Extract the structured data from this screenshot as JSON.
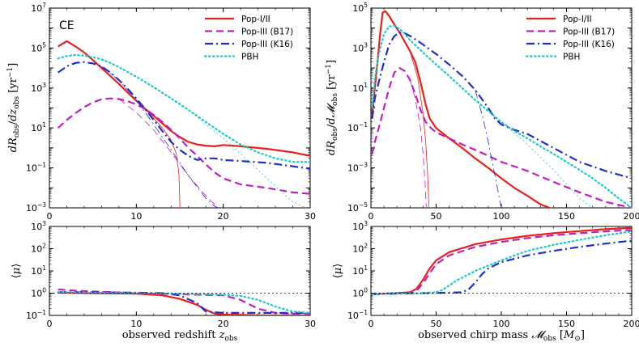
{
  "figure_colors": {
    "pop12": "#e8201c",
    "b17": "#c21fc0",
    "k16": "#1f2fcf",
    "pbh": "#1fc8c8",
    "ref": "#000000"
  },
  "legend_entries": [
    "Pop-I/II",
    "Pop-III (B17)",
    "Pop-III (K16)",
    "PBH"
  ],
  "chart_data": [
    {
      "id": "tl",
      "type": "line",
      "panel_label": "CE",
      "xlabel": "",
      "ylabel": "dR_obs / dz_obs [yr^-1]",
      "xscale": "linear",
      "yscale": "log",
      "xlim": [
        0,
        30
      ],
      "ylim": [
        0.001,
        10000000
      ],
      "xticks": [
        0,
        10,
        20,
        30
      ],
      "xticklabels": [
        "0",
        "10",
        "20",
        "30"
      ],
      "yticks": [
        0.001,
        0.1,
        10,
        1000,
        100000,
        10000000
      ],
      "yticklabels": [
        "10^-3",
        "10^-1",
        "10^1",
        "10^3",
        "10^5",
        "10^7"
      ],
      "legend": "top-right",
      "series": [
        {
          "name": "Pop-I/II",
          "key": "pop12",
          "dash": "solid",
          "width": 2.2,
          "x": [
            1,
            2,
            3,
            4,
            5,
            6,
            7,
            8,
            9,
            10,
            11,
            12,
            13,
            14,
            15,
            16,
            17,
            18,
            19,
            20,
            22,
            25,
            28,
            30
          ],
          "y": [
            120000,
            220000,
            120000,
            60000,
            25000,
            10000,
            4000,
            1600,
            600,
            230,
            90,
            40,
            17,
            7,
            3.5,
            2,
            1.5,
            1.3,
            1.2,
            1.4,
            1.2,
            0.9,
            0.6,
            0.4
          ]
        },
        {
          "name": "Pop-I/II thin",
          "key": "pop12",
          "dash": "solid",
          "width": 0.8,
          "x": [
            7,
            9,
            11,
            13,
            14,
            14.6,
            14.9,
            15,
            15.02
          ],
          "y": [
            4000,
            600,
            90,
            10,
            2.5,
            0.5,
            0.05,
            0.002,
            0.001
          ]
        },
        {
          "name": "Pop-III (B17)",
          "key": "b17",
          "dash": "dash",
          "width": 2.2,
          "x": [
            1,
            2,
            3,
            4,
            5,
            6,
            7,
            8,
            9,
            10,
            11,
            12,
            13,
            14,
            15,
            16,
            17,
            18,
            19,
            20,
            22,
            25,
            28,
            30
          ],
          "y": [
            10,
            25,
            55,
            110,
            190,
            270,
            300,
            280,
            220,
            150,
            90,
            45,
            20,
            8,
            3,
            1,
            0.4,
            0.15,
            0.06,
            0.03,
            0.015,
            0.01,
            0.006,
            0.005
          ]
        },
        {
          "name": "Pop-III (B17) thin",
          "key": "b17",
          "dash": "dash",
          "width": 0.8,
          "x": [
            8,
            10,
            12,
            14,
            16,
            18,
            19,
            19.5
          ],
          "y": [
            280,
            60,
            8,
            0.6,
            0.04,
            0.004,
            0.0015,
            0.001
          ]
        },
        {
          "name": "Pop-III (K16)",
          "key": "k16",
          "dash": "dashdot",
          "width": 2.2,
          "x": [
            1,
            2,
            3,
            4,
            5,
            6,
            7,
            8,
            9,
            10,
            11,
            12,
            13,
            14,
            15,
            16,
            17,
            18,
            19,
            20,
            22,
            25,
            28,
            30
          ],
          "y": [
            6000,
            12000,
            18000,
            20000,
            17000,
            12000,
            6000,
            2500,
            900,
            300,
            90,
            25,
            7,
            2,
            0.8,
            0.4,
            0.25,
            0.3,
            0.3,
            0.25,
            0.22,
            0.18,
            0.12,
            0.09
          ]
        },
        {
          "name": "Pop-III (K16) thin",
          "key": "k16",
          "dash": "dashdot",
          "width": 0.8,
          "x": [
            6,
            8,
            10,
            12,
            14,
            16,
            18,
            19,
            19.4
          ],
          "y": [
            12000,
            2500,
            250,
            15,
            0.8,
            0.04,
            0.003,
            0.0012,
            0.001
          ]
        },
        {
          "name": "PBH",
          "key": "pbh",
          "dash": "dot",
          "width": 2.2,
          "x": [
            1,
            2,
            3,
            4,
            5,
            6,
            7,
            8,
            10,
            12,
            14,
            16,
            18,
            20,
            22,
            24,
            26,
            28,
            30
          ],
          "y": [
            30000,
            40000,
            45000,
            42000,
            35000,
            27000,
            18000,
            11000,
            3700,
            1100,
            300,
            80,
            20,
            5,
            1.5,
            0.6,
            0.3,
            0.2,
            0.2
          ]
        },
        {
          "name": "PBH thin",
          "key": "pbh",
          "dash": "dot",
          "width": 0.8,
          "x": [
            16,
            18,
            20,
            22,
            24,
            26,
            28,
            29.5
          ],
          "y": [
            80,
            15,
            3,
            0.5,
            0.08,
            0.012,
            0.002,
            0.001
          ]
        }
      ]
    },
    {
      "id": "tr",
      "type": "line",
      "xlabel": "",
      "ylabel": "dR_obs / dM_obs [yr^-1]",
      "xscale": "linear",
      "yscale": "log",
      "xlim": [
        0,
        200
      ],
      "ylim": [
        1e-05,
        100000
      ],
      "xticks": [
        0,
        50,
        100,
        150,
        200
      ],
      "xticklabels": [
        "0",
        "50",
        "100",
        "150",
        "200"
      ],
      "yticks": [
        1e-05,
        0.001,
        0.1,
        10,
        1000,
        100000
      ],
      "yticklabels": [
        "10^-5",
        "10^-3",
        "10^-1",
        "10^1",
        "10^3",
        "10^5"
      ],
      "legend": "top-right",
      "series": [
        {
          "name": "Pop-I/II",
          "key": "pop12",
          "dash": "solid",
          "width": 2.2,
          "x": [
            1,
            3,
            5,
            7,
            9,
            11,
            14,
            18,
            22,
            26,
            30,
            34,
            38,
            42,
            45,
            50,
            60,
            70,
            80,
            90,
            100,
            110,
            120,
            130,
            137
          ],
          "y": [
            0.5,
            10,
            200,
            5000,
            60000,
            70000,
            40000,
            15000,
            6000,
            2000,
            700,
            200,
            20,
            1.5,
            0.3,
            0.1,
            0.03,
            0.01,
            0.003,
            0.001,
            0.0003,
            0.0001,
            4e-05,
            1.5e-05,
            1e-05
          ]
        },
        {
          "name": "Pop-I/II thin",
          "key": "pop12",
          "dash": "solid",
          "width": 0.8,
          "x": [
            22,
            30,
            36,
            40,
            42,
            43.5,
            44.5
          ],
          "y": [
            6000,
            700,
            30,
            0.5,
            0.02,
            0.0005,
            1e-05
          ]
        },
        {
          "name": "Pop-III (B17)",
          "key": "b17",
          "dash": "dash",
          "width": 2.2,
          "x": [
            1,
            3,
            6,
            10,
            14,
            18,
            22,
            26,
            30,
            34,
            38,
            42,
            46,
            50,
            60,
            70,
            80,
            90,
            100,
            120,
            140,
            160,
            180,
            200
          ],
          "y": [
            0.005,
            0.02,
            0.1,
            1,
            10,
            60,
            100,
            70,
            25,
            5,
            0.8,
            0.2,
            0.1,
            0.06,
            0.03,
            0.015,
            0.008,
            0.004,
            0.002,
            0.0007,
            0.0002,
            6e-05,
            2e-05,
            1e-05
          ]
        },
        {
          "name": "Pop-III (B17) thin",
          "key": "b17",
          "dash": "dash",
          "width": 0.8,
          "x": [
            30,
            34,
            38,
            40,
            41.5,
            42.5
          ],
          "y": [
            25,
            3,
            0.1,
            0.005,
            0.0002,
            1e-05
          ]
        },
        {
          "name": "Pop-III (K16)",
          "key": "k16",
          "dash": "dashdot",
          "width": 2.2,
          "x": [
            1,
            3,
            6,
            10,
            14,
            18,
            22,
            26,
            30,
            35,
            40,
            50,
            60,
            70,
            80,
            90,
            95,
            100,
            110,
            120,
            140,
            160,
            180,
            200
          ],
          "y": [
            0.3,
            3,
            20,
            200,
            1500,
            4000,
            6000,
            5500,
            4000,
            2500,
            1500,
            500,
            150,
            40,
            8,
            1,
            0.3,
            0.15,
            0.08,
            0.05,
            0.01,
            0.002,
            0.0007,
            0.0003
          ]
        },
        {
          "name": "Pop-III (K16) thin",
          "key": "k16",
          "dash": "dashdot",
          "width": 0.8,
          "x": [
            80,
            86,
            90,
            94,
            97,
            99,
            100
          ],
          "y": [
            8,
            0.3,
            0.02,
            0.001,
            0.0001,
            2e-05,
            1e-05
          ]
        },
        {
          "name": "PBH",
          "key": "pbh",
          "dash": "dot",
          "width": 2.2,
          "x": [
            1,
            3,
            6,
            10,
            14,
            18,
            22,
            26,
            30,
            40,
            50,
            60,
            70,
            80,
            90,
            100,
            110,
            120,
            130,
            140,
            150,
            160,
            170,
            180,
            190,
            200
          ],
          "y": [
            1,
            30,
            500,
            5000,
            12000,
            13000,
            9000,
            5000,
            2500,
            600,
            150,
            40,
            10,
            2.5,
            0.7,
            0.2,
            0.07,
            0.03,
            0.012,
            0.005,
            0.002,
            0.0008,
            0.0003,
            0.0001,
            3e-05,
            1e-05
          ]
        },
        {
          "name": "PBH thin",
          "key": "pbh",
          "dash": "dot",
          "width": 0.8,
          "x": [
            100,
            120,
            140,
            150,
            160,
            170
          ],
          "y": [
            0.2,
            0.015,
            0.0008,
            0.00015,
            3e-05,
            1e-05
          ]
        }
      ]
    },
    {
      "id": "bl",
      "type": "line",
      "xlabel": "observed redshift z_obs",
      "ylabel": "⟨μ⟩",
      "xscale": "linear",
      "yscale": "log",
      "xlim": [
        0,
        30
      ],
      "ylim": [
        0.1,
        1000
      ],
      "xticks": [
        0,
        10,
        20,
        30
      ],
      "xticklabels": [
        "0",
        "10",
        "20",
        "30"
      ],
      "yticks": [
        0.1,
        1,
        10,
        100,
        1000
      ],
      "yticklabels": [
        "10^-1",
        "10^0",
        "10^1",
        "10^2",
        "10^3"
      ],
      "series": [
        {
          "name": "Pop-I/II",
          "key": "pop12",
          "dash": "solid",
          "width": 2.2,
          "x": [
            1,
            5,
            10,
            13,
            15,
            17,
            18,
            19,
            20,
            25,
            30
          ],
          "y": [
            1.05,
            1,
            0.95,
            0.8,
            0.55,
            0.3,
            0.18,
            0.12,
            0.11,
            0.1,
            0.1
          ]
        },
        {
          "name": "Pop-III (B17)",
          "key": "b17",
          "dash": "dash",
          "width": 2.2,
          "x": [
            1,
            3,
            6,
            10,
            15,
            20,
            22,
            24,
            26,
            28,
            30
          ],
          "y": [
            1.5,
            1.3,
            1.15,
            1,
            0.9,
            0.8,
            0.5,
            0.2,
            0.13,
            0.12,
            0.12
          ]
        },
        {
          "name": "Pop-III (K16)",
          "key": "k16",
          "dash": "dashdot",
          "width": 2.2,
          "x": [
            1,
            5,
            10,
            13,
            15,
            17,
            18,
            20,
            25,
            30
          ],
          "y": [
            1.1,
            1.1,
            1.05,
            1,
            0.8,
            0.35,
            0.15,
            0.13,
            0.13,
            0.13
          ]
        },
        {
          "name": "PBH",
          "key": "pbh",
          "dash": "dot",
          "width": 2.2,
          "x": [
            1,
            5,
            10,
            15,
            20,
            22,
            24,
            26,
            28,
            30
          ],
          "y": [
            1.1,
            1.05,
            1,
            0.95,
            0.85,
            0.75,
            0.5,
            0.25,
            0.15,
            0.13
          ]
        },
        {
          "name": "μ = 1",
          "key": "ref",
          "dash": "dot",
          "width": 0.8,
          "x": [
            0,
            30
          ],
          "y": [
            1,
            1
          ]
        }
      ]
    },
    {
      "id": "br",
      "type": "line",
      "xlabel": "observed chirp mass M_obs [M_⊙]",
      "ylabel": "⟨μ⟩",
      "xscale": "linear",
      "yscale": "log",
      "xlim": [
        0,
        200
      ],
      "ylim": [
        0.1,
        1000
      ],
      "xticks": [
        0,
        50,
        100,
        150,
        200
      ],
      "xticklabels": [
        "0",
        "50",
        "100",
        "150",
        "200"
      ],
      "yticks": [
        0.1,
        1,
        10,
        100,
        1000
      ],
      "yticklabels": [
        "10^-1",
        "10^0",
        "10^1",
        "10^2",
        "10^3"
      ],
      "series": [
        {
          "name": "Pop-I/II",
          "key": "pop12",
          "dash": "solid",
          "width": 2.2,
          "x": [
            1,
            10,
            20,
            30,
            35,
            40,
            45,
            50,
            60,
            80,
            100,
            120,
            140,
            160,
            180,
            200
          ],
          "y": [
            0.9,
            0.95,
            1,
            1.1,
            1.6,
            4,
            13,
            30,
            70,
            160,
            260,
            380,
            500,
            620,
            750,
            870
          ]
        },
        {
          "name": "Pop-III (B17)",
          "key": "b17",
          "dash": "dash",
          "width": 2.2,
          "x": [
            1,
            10,
            20,
            30,
            35,
            40,
            45,
            50,
            60,
            80,
            100,
            120,
            140,
            160,
            180,
            200
          ],
          "y": [
            0.9,
            0.95,
            1,
            1.05,
            1.3,
            2.8,
            8,
            20,
            50,
            120,
            200,
            300,
            400,
            500,
            600,
            700
          ]
        },
        {
          "name": "Pop-III (K16)",
          "key": "k16",
          "dash": "dashdot",
          "width": 2.2,
          "x": [
            1,
            20,
            40,
            60,
            70,
            75,
            80,
            85,
            90,
            100,
            120,
            140,
            160,
            180,
            200
          ],
          "y": [
            0.9,
            0.95,
            1,
            1.05,
            1.1,
            1.5,
            3,
            7,
            13,
            25,
            50,
            80,
            120,
            170,
            230
          ]
        },
        {
          "name": "PBH",
          "key": "pbh",
          "dash": "dot",
          "width": 2.2,
          "x": [
            1,
            20,
            40,
            50,
            55,
            60,
            65,
            70,
            80,
            100,
            120,
            140,
            160,
            180,
            200
          ],
          "y": [
            0.9,
            0.95,
            1,
            1.1,
            1.4,
            2.2,
            3.5,
            5,
            10,
            30,
            80,
            150,
            250,
            400,
            600
          ]
        },
        {
          "name": "μ = 1",
          "key": "ref",
          "dash": "dot",
          "width": 0.8,
          "x": [
            0,
            200
          ],
          "y": [
            1,
            1
          ]
        }
      ]
    }
  ]
}
